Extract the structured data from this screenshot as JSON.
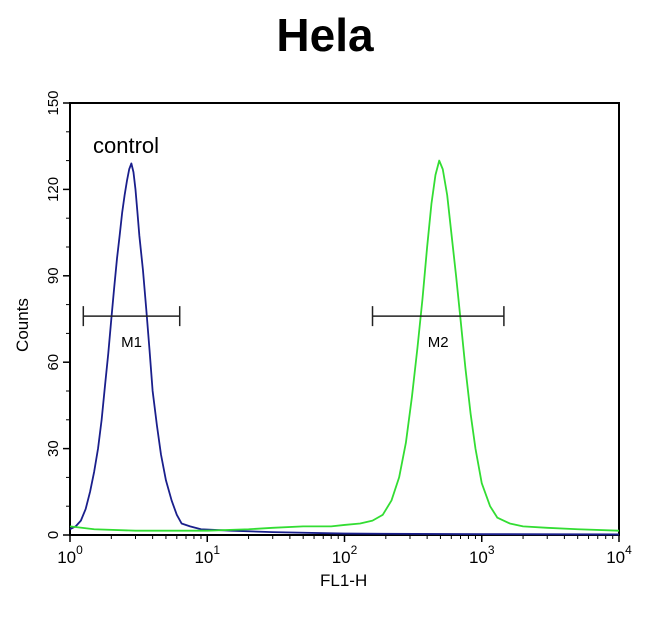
{
  "chart_data": {
    "type": "line",
    "title": "Hela",
    "xlabel": "FL1-H",
    "ylabel": "Counts",
    "xscale": "log",
    "xlim": [
      1,
      10000
    ],
    "ylim": [
      0,
      150
    ],
    "x_ticks": [
      {
        "base": "10",
        "exp": "0"
      },
      {
        "base": "10",
        "exp": "1"
      },
      {
        "base": "10",
        "exp": "2"
      },
      {
        "base": "10",
        "exp": "3"
      },
      {
        "base": "10",
        "exp": "4"
      }
    ],
    "y_ticks": [
      "0",
      "30",
      "60",
      "90",
      "120",
      "150"
    ],
    "annotation": "control",
    "series": [
      {
        "color": "#1a1f8c",
        "points": [
          [
            1.0,
            2
          ],
          [
            1.1,
            3
          ],
          [
            1.2,
            5
          ],
          [
            1.3,
            9
          ],
          [
            1.4,
            15
          ],
          [
            1.5,
            22
          ],
          [
            1.6,
            30
          ],
          [
            1.7,
            40
          ],
          [
            1.8,
            52
          ],
          [
            1.9,
            63
          ],
          [
            2.0,
            75
          ],
          [
            2.1,
            86
          ],
          [
            2.2,
            96
          ],
          [
            2.3,
            104
          ],
          [
            2.4,
            112
          ],
          [
            2.5,
            118
          ],
          [
            2.6,
            123
          ],
          [
            2.7,
            127
          ],
          [
            2.8,
            129
          ],
          [
            2.9,
            126
          ],
          [
            3.0,
            120
          ],
          [
            3.1,
            112
          ],
          [
            3.2,
            104
          ],
          [
            3.4,
            92
          ],
          [
            3.6,
            78
          ],
          [
            3.8,
            64
          ],
          [
            4.0,
            50
          ],
          [
            4.3,
            38
          ],
          [
            4.6,
            28
          ],
          [
            5.0,
            19
          ],
          [
            5.5,
            12
          ],
          [
            6.0,
            7
          ],
          [
            6.5,
            4
          ],
          [
            7.5,
            3
          ],
          [
            9,
            2
          ],
          [
            15,
            1.5
          ],
          [
            30,
            1
          ],
          [
            100,
            0.5
          ],
          [
            1000,
            0.3
          ],
          [
            10000,
            0.2
          ]
        ]
      },
      {
        "color": "#33dd33",
        "points": [
          [
            1.0,
            3
          ],
          [
            1.5,
            2
          ],
          [
            3,
            1.5
          ],
          [
            10,
            1.5
          ],
          [
            20,
            2
          ],
          [
            30,
            2.5
          ],
          [
            50,
            3
          ],
          [
            80,
            3
          ],
          [
            100,
            3.5
          ],
          [
            130,
            4
          ],
          [
            160,
            5
          ],
          [
            190,
            7
          ],
          [
            220,
            12
          ],
          [
            250,
            20
          ],
          [
            280,
            32
          ],
          [
            310,
            48
          ],
          [
            340,
            65
          ],
          [
            370,
            82
          ],
          [
            400,
            100
          ],
          [
            430,
            115
          ],
          [
            460,
            125
          ],
          [
            490,
            130
          ],
          [
            520,
            127
          ],
          [
            560,
            118
          ],
          [
            600,
            105
          ],
          [
            650,
            90
          ],
          [
            700,
            75
          ],
          [
            760,
            58
          ],
          [
            830,
            42
          ],
          [
            900,
            30
          ],
          [
            1000,
            18
          ],
          [
            1150,
            10
          ],
          [
            1300,
            6
          ],
          [
            1600,
            4
          ],
          [
            2000,
            3
          ],
          [
            3000,
            2.5
          ],
          [
            5000,
            2
          ],
          [
            10000,
            1.5
          ]
        ]
      }
    ],
    "markers": [
      {
        "label": "M1",
        "x1": 1.25,
        "x2": 6.3,
        "y": 76
      },
      {
        "label": "M2",
        "x1": 160,
        "x2": 1450,
        "y": 76
      }
    ]
  }
}
